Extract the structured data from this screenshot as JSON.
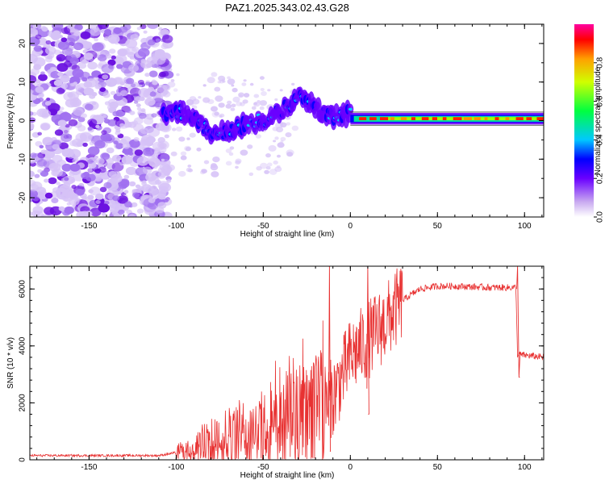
{
  "title": "PAZ1.2025.343.02.43.G28",
  "chart_data": [
    {
      "type": "heatmap",
      "xlabel": "Height of straight line (km)",
      "ylabel": "Frequency (Hz)",
      "xlim": [
        -184,
        111
      ],
      "ylim": [
        -25,
        25
      ],
      "xticks": [
        -150,
        -100,
        -50,
        0,
        50,
        100
      ],
      "yticks": [
        -20,
        -10,
        0,
        10,
        20
      ],
      "colorbar": {
        "label": "Normalized spectral amplitude",
        "range": [
          0.0,
          1.0
        ],
        "ticks": [
          "0.0",
          "0.2",
          "0.4",
          "0.6",
          "0.8"
        ],
        "tick_values": [
          0.0,
          0.2,
          0.4,
          0.6,
          0.8
        ]
      },
      "centerline": [
        [
          -105,
          2
        ],
        [
          -95,
          2
        ],
        [
          -85,
          -1
        ],
        [
          -78,
          -4
        ],
        [
          -72,
          -3
        ],
        [
          -65,
          -2
        ],
        [
          -58,
          0
        ],
        [
          -50,
          0
        ],
        [
          -42,
          2
        ],
        [
          -35,
          4
        ],
        [
          -28,
          6
        ],
        [
          -22,
          4
        ],
        [
          -15,
          2
        ],
        [
          -10,
          1
        ],
        [
          -5,
          1
        ],
        [
          0,
          2
        ],
        [
          5,
          1
        ],
        [
          10,
          0.5
        ],
        [
          20,
          0.5
        ],
        [
          40,
          0.5
        ],
        [
          60,
          0.5
        ],
        [
          80,
          0.5
        ],
        [
          100,
          0.5
        ],
        [
          111,
          0.5
        ]
      ]
    },
    {
      "type": "line",
      "xlabel": "Height of straight line (km)",
      "ylabel": "SNR (10 * v/v)",
      "xlim": [
        -184,
        111
      ],
      "ylim": [
        0,
        6800
      ],
      "xticks": [
        -150,
        -100,
        -50,
        0,
        50,
        100
      ],
      "yticks": [
        0,
        2000,
        4000,
        6000
      ],
      "color": "#e83232",
      "trend": [
        [
          -184,
          150
        ],
        [
          -110,
          150
        ],
        [
          -100,
          250
        ],
        [
          -90,
          350
        ],
        [
          -80,
          600
        ],
        [
          -70,
          800
        ],
        [
          -60,
          900
        ],
        [
          -50,
          1000
        ],
        [
          -40,
          1400
        ],
        [
          -30,
          1600
        ],
        [
          -20,
          1800
        ],
        [
          -10,
          2200
        ],
        [
          0,
          3600
        ],
        [
          10,
          4200
        ],
        [
          20,
          4800
        ],
        [
          30,
          5600
        ],
        [
          40,
          6000
        ],
        [
          50,
          6100
        ],
        [
          60,
          6100
        ],
        [
          80,
          6050
        ],
        [
          95,
          6050
        ],
        [
          96,
          3700
        ],
        [
          111,
          3600
        ]
      ]
    }
  ]
}
